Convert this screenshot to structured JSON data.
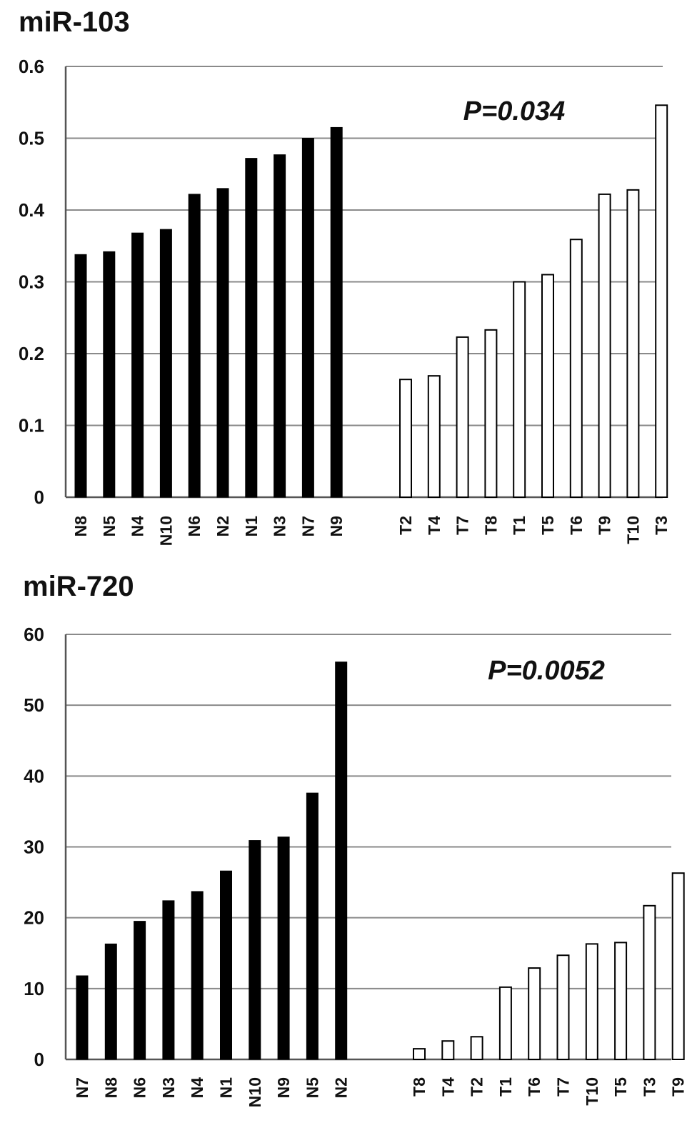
{
  "chart_data": [
    {
      "type": "bar",
      "title": "miR-103",
      "annotation": "P=0.034",
      "ylim": [
        0,
        0.6
      ],
      "yticks": [
        0,
        0.1,
        0.2,
        0.3,
        0.4,
        0.5,
        0.6
      ],
      "ytick_labels": [
        "0",
        "0.1",
        "0.2",
        "0.3",
        "0.4",
        "0.5",
        "0.6"
      ],
      "grid": true,
      "series": [
        {
          "categories": [
            "N8",
            "N5",
            "N4",
            "N10",
            "N6",
            "N2",
            "N1",
            "N3",
            "N7",
            "N9"
          ],
          "values": [
            0.338,
            0.342,
            0.368,
            0.373,
            0.422,
            0.43,
            0.472,
            0.477,
            0.5,
            0.515
          ],
          "color": "#000000"
        },
        {
          "categories": [
            "T2",
            "T4",
            "T7",
            "T8",
            "T1",
            "T5",
            "T6",
            "T9",
            "T10",
            "T3"
          ],
          "values": [
            0.164,
            0.169,
            0.223,
            0.233,
            0.3,
            0.31,
            0.359,
            0.422,
            0.428,
            0.546
          ],
          "color": "#ffffff"
        }
      ]
    },
    {
      "type": "bar",
      "title": "miR-720",
      "annotation": "P=0.0052",
      "ylim": [
        0,
        60
      ],
      "yticks": [
        0,
        10,
        20,
        30,
        40,
        50,
        60
      ],
      "ytick_labels": [
        "0",
        "10",
        "20",
        "30",
        "40",
        "50",
        "60"
      ],
      "grid": true,
      "series": [
        {
          "categories": [
            "N7",
            "N8",
            "N6",
            "N3",
            "N4",
            "N1",
            "N10",
            "N9",
            "N5",
            "N2"
          ],
          "values": [
            11.8,
            16.3,
            19.5,
            22.4,
            23.7,
            26.6,
            30.9,
            31.4,
            37.6,
            56.1
          ],
          "color": "#000000"
        },
        {
          "categories": [
            "T8",
            "T4",
            "T2",
            "T1",
            "T6",
            "T7",
            "T10",
            "T5",
            "T3",
            "T9"
          ],
          "values": [
            1.5,
            2.6,
            3.2,
            10.2,
            12.9,
            14.7,
            16.3,
            16.5,
            21.7,
            26.3
          ],
          "color": "#ffffff"
        }
      ]
    }
  ]
}
